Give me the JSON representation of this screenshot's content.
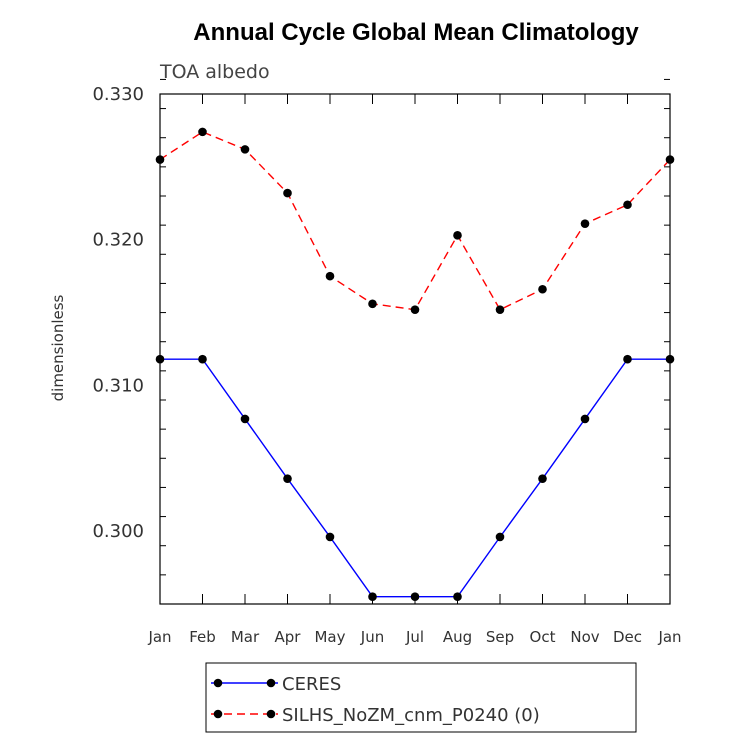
{
  "chart_data": {
    "type": "line",
    "title": "Annual Cycle Global Mean Climatology",
    "subtitle": "TOA albedo",
    "ylabel": "dimensionless",
    "xlabel": "",
    "ylim": [
      0.295,
      0.33
    ],
    "yticks": [
      "0.300",
      "0.310",
      "0.320",
      "0.330"
    ],
    "categories": [
      "Jan",
      "Feb",
      "Mar",
      "Apr",
      "May",
      "Jun",
      "Jul",
      "Aug",
      "Sep",
      "Oct",
      "Nov",
      "Dec",
      "Jan"
    ],
    "series": [
      {
        "name": "CERES",
        "color": "#0000ff",
        "dash": "solid",
        "marker": "circle",
        "values": [
          0.3118,
          0.3118,
          0.3077,
          0.3036,
          0.2996,
          0.2955,
          0.2955,
          0.2955,
          0.2996,
          0.3036,
          0.3077,
          0.3118,
          0.3118
        ]
      },
      {
        "name": "SILHS_NoZM_cnm_P0240 (0)",
        "color": "#ff0000",
        "dash": "dashed",
        "marker": "circle",
        "values": [
          0.3255,
          0.3274,
          0.3262,
          0.3232,
          0.3175,
          0.3156,
          0.3152,
          0.3203,
          0.3152,
          0.3166,
          0.3211,
          0.3224,
          0.3255
        ]
      }
    ],
    "legend_position": "bottom",
    "grid": false
  }
}
